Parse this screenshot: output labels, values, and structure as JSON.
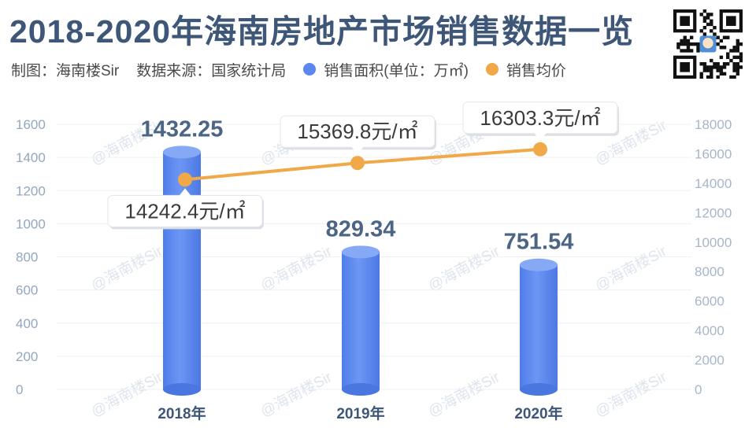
{
  "header": {
    "title": "2018-2020年海南房地产市场销售数据一览",
    "maker": "制图：海南楼Sir",
    "source": "数据来源：国家统计局"
  },
  "qr": {
    "icon": "qr-code-icon"
  },
  "watermark": "@海南楼Sir",
  "colors": {
    "bar": "#5b87ee",
    "bar_top": "#6e97f2",
    "line": "#f0a848",
    "title": "#3e5677",
    "axis_left": "#93a7bf",
    "axis_right": "#a6b6c8"
  },
  "chart_data": {
    "type": "bar",
    "categories": [
      "2018年",
      "2019年",
      "2020年"
    ],
    "series": [
      {
        "name": "销售面积(单位：万㎡)",
        "type": "bar",
        "axis": "left",
        "values": [
          1432.25,
          829.34,
          751.54
        ],
        "labels": [
          "1432.25",
          "829.34",
          "751.54"
        ]
      },
      {
        "name": "销售均价",
        "type": "line",
        "axis": "right",
        "values": [
          14242.4,
          15369.8,
          16303.3
        ],
        "labels": [
          "14242.4元/㎡",
          "15369.8元/㎡",
          "16303.3元/㎡"
        ]
      }
    ],
    "y_left": {
      "ylim": [
        0,
        1600
      ],
      "ticks": [
        0,
        200,
        400,
        600,
        800,
        1000,
        1200,
        1400,
        1600
      ]
    },
    "y_right": {
      "ylim": [
        0,
        18000
      ],
      "ticks": [
        0,
        2000,
        4000,
        6000,
        8000,
        10000,
        12000,
        14000,
        16000,
        18000
      ]
    },
    "grid": true,
    "legend_position": "top"
  }
}
